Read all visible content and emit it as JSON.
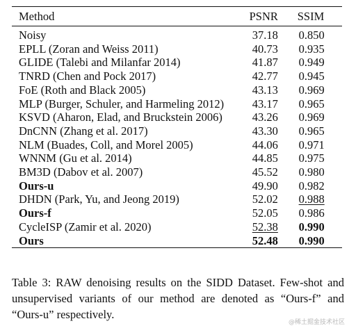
{
  "table": {
    "headers": {
      "method": "Method",
      "psnr": "PSNR",
      "ssim": "SSIM"
    },
    "rows": [
      {
        "method": "Noisy",
        "psnr": "37.18",
        "ssim": "0.850"
      },
      {
        "method": "EPLL (Zoran and Weiss 2011)",
        "psnr": "40.73",
        "ssim": "0.935"
      },
      {
        "method": "GLIDE (Talebi and Milanfar 2014)",
        "psnr": "41.87",
        "ssim": "0.949"
      },
      {
        "method": "TNRD (Chen and Pock 2017)",
        "psnr": "42.77",
        "ssim": "0.945"
      },
      {
        "method": "FoE (Roth and Black 2005)",
        "psnr": "43.13",
        "ssim": "0.969"
      },
      {
        "method": "MLP (Burger, Schuler, and Harmeling 2012)",
        "psnr": "43.17",
        "ssim": "0.965"
      },
      {
        "method": "KSVD (Aharon, Elad, and Bruckstein 2006)",
        "psnr": "43.26",
        "ssim": "0.969"
      },
      {
        "method": "DnCNN (Zhang et al. 2017)",
        "psnr": "43.30",
        "ssim": "0.965"
      },
      {
        "method": "NLM (Buades, Coll, and Morel 2005)",
        "psnr": "44.06",
        "ssim": "0.971"
      },
      {
        "method": "WNNM (Gu et al. 2014)",
        "psnr": "44.85",
        "ssim": "0.975"
      },
      {
        "method": "BM3D (Dabov et al. 2007)",
        "psnr": "45.52",
        "ssim": "0.980"
      },
      {
        "method": "Ours-u",
        "psnr": "49.90",
        "ssim": "0.982"
      },
      {
        "method": "DHDN (Park, Yu, and Jeong 2019)",
        "psnr": "52.02",
        "ssim": "0.988"
      },
      {
        "method": "Ours-f",
        "psnr": "52.05",
        "ssim": "0.986"
      },
      {
        "method": "CycleISP (Zamir et al. 2020)",
        "psnr": "52.38",
        "ssim": "0.990"
      },
      {
        "method": "Ours",
        "psnr": "52.48",
        "ssim": "0.990"
      }
    ]
  },
  "caption": "Table 3: RAW denoising results on the SIDD Dataset. Few-shot and unsupervised variants of our method are denoted as “Ours-f” and “Ours-u” respectively.",
  "watermark": "@稀土掘金技术社区"
}
